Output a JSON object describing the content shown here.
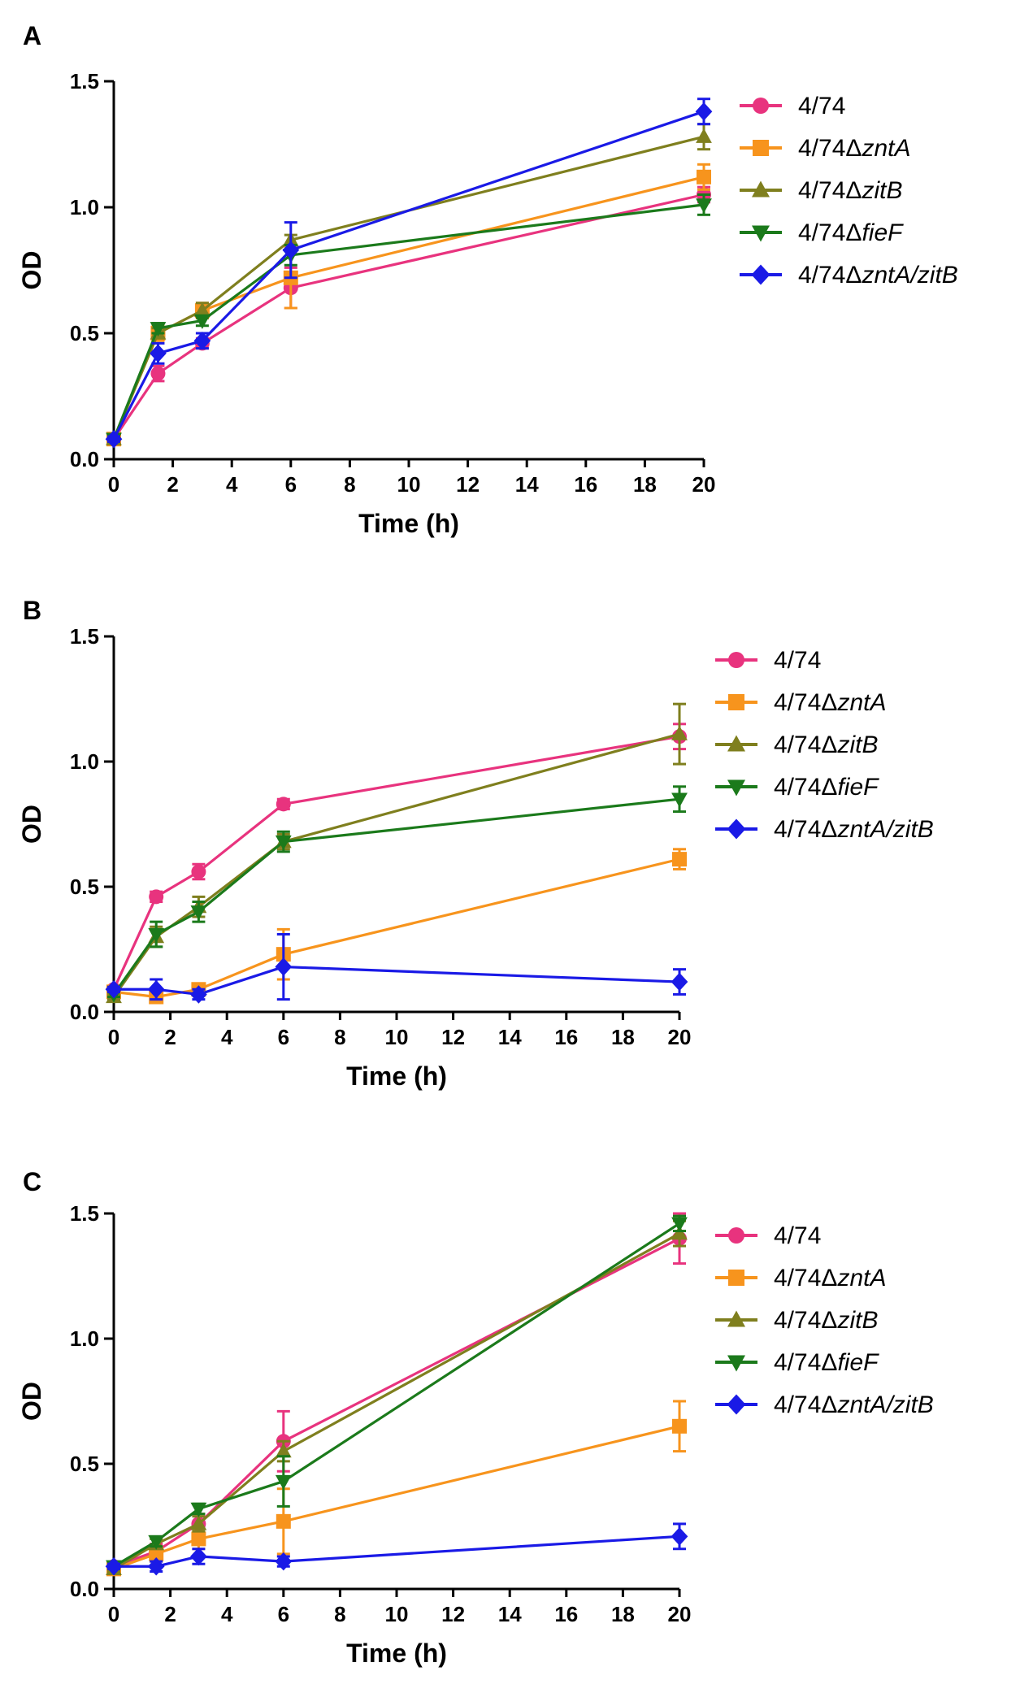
{
  "chart_data": [
    {
      "type": "line",
      "panel_label": "A",
      "title": "",
      "xlabel": "Time (h)",
      "ylabel": "OD",
      "xlim": [
        0,
        20
      ],
      "ylim": [
        0,
        1.5
      ],
      "xticks": [
        "0",
        "2",
        "4",
        "6",
        "8",
        "10",
        "12",
        "14",
        "16",
        "18",
        "20"
      ],
      "yticks": [
        "0.0",
        "0.5",
        "1.0",
        "1.5"
      ],
      "x": [
        0,
        1.5,
        3,
        6,
        20
      ],
      "legend_position": "right",
      "series": [
        {
          "name": "4/74",
          "suffix": "",
          "color": "#E8337E",
          "marker": "circle",
          "values": [
            0.08,
            0.34,
            0.46,
            0.68,
            1.05
          ],
          "errors": [
            0.01,
            0.03,
            0.02,
            0.08,
            0.03
          ]
        },
        {
          "name": "4/74Δ",
          "suffix": "zntA",
          "color": "#F7941D",
          "marker": "square",
          "values": [
            0.08,
            0.5,
            0.59,
            0.72,
            1.12
          ],
          "errors": [
            0.01,
            0.03,
            0.03,
            0.12,
            0.05
          ]
        },
        {
          "name": "4/74Δ",
          "suffix": "zitB",
          "color": "#7F7F1E",
          "marker": "triangle-up",
          "values": [
            0.08,
            0.5,
            0.59,
            0.87,
            1.28
          ],
          "errors": [
            0.01,
            0.02,
            0.03,
            0.02,
            0.05
          ]
        },
        {
          "name": "4/74Δ",
          "suffix": "fieF",
          "color": "#1B7A1B",
          "marker": "triangle-down",
          "values": [
            0.08,
            0.52,
            0.55,
            0.81,
            1.01
          ],
          "errors": [
            0.01,
            0.02,
            0.02,
            0.04,
            0.04
          ]
        },
        {
          "name": "4/74Δ",
          "suffix": "zntA/zitB",
          "color": "#1A1AE6",
          "marker": "diamond",
          "values": [
            0.08,
            0.42,
            0.47,
            0.83,
            1.38
          ],
          "errors": [
            0.01,
            0.04,
            0.03,
            0.11,
            0.05
          ]
        }
      ]
    },
    {
      "type": "line",
      "panel_label": "B",
      "title": "",
      "xlabel": "Time (h)",
      "ylabel": "OD",
      "xlim": [
        0,
        20
      ],
      "ylim": [
        0,
        1.5
      ],
      "xticks": [
        "0",
        "2",
        "4",
        "6",
        "8",
        "10",
        "12",
        "14",
        "16",
        "18",
        "20"
      ],
      "yticks": [
        "0.0",
        "0.5",
        "1.0",
        "1.5"
      ],
      "x": [
        0,
        1.5,
        3,
        6,
        20
      ],
      "legend_position": "right",
      "series": [
        {
          "name": "4/74",
          "suffix": "",
          "color": "#E8337E",
          "marker": "circle",
          "values": [
            0.09,
            0.46,
            0.56,
            0.83,
            1.1
          ],
          "errors": [
            0.01,
            0.02,
            0.03,
            0.02,
            0.05
          ]
        },
        {
          "name": "4/74Δ",
          "suffix": "zntA",
          "color": "#F7941D",
          "marker": "square",
          "values": [
            0.08,
            0.06,
            0.09,
            0.23,
            0.61
          ],
          "errors": [
            0.01,
            0.02,
            0.02,
            0.1,
            0.04
          ]
        },
        {
          "name": "4/74Δ",
          "suffix": "zitB",
          "color": "#7F7F1E",
          "marker": "triangle-up",
          "values": [
            0.06,
            0.3,
            0.42,
            0.68,
            1.11
          ],
          "errors": [
            0.01,
            0.04,
            0.04,
            0.03,
            0.12
          ]
        },
        {
          "name": "4/74Δ",
          "suffix": "fieF",
          "color": "#1B7A1B",
          "marker": "triangle-down",
          "values": [
            0.07,
            0.31,
            0.4,
            0.68,
            0.85
          ],
          "errors": [
            0.01,
            0.05,
            0.04,
            0.04,
            0.05
          ]
        },
        {
          "name": "4/74Δ",
          "suffix": "zntA/zitB",
          "color": "#1A1AE6",
          "marker": "diamond",
          "values": [
            0.09,
            0.09,
            0.07,
            0.18,
            0.12
          ],
          "errors": [
            0.01,
            0.04,
            0.02,
            0.13,
            0.05
          ]
        }
      ]
    },
    {
      "type": "line",
      "panel_label": "C",
      "title": "",
      "xlabel": "Time (h)",
      "ylabel": "OD",
      "xlim": [
        0,
        20
      ],
      "ylim": [
        0,
        1.5
      ],
      "xticks": [
        "0",
        "2",
        "4",
        "6",
        "8",
        "10",
        "12",
        "14",
        "16",
        "18",
        "20"
      ],
      "yticks": [
        "0.0",
        "0.5",
        "1.0",
        "1.5"
      ],
      "x": [
        0,
        1.5,
        3,
        6,
        20
      ],
      "legend_position": "right",
      "series": [
        {
          "name": "4/74",
          "suffix": "",
          "color": "#E8337E",
          "marker": "circle",
          "values": [
            0.09,
            0.15,
            0.26,
            0.59,
            1.4
          ],
          "errors": [
            0.01,
            0.03,
            0.04,
            0.12,
            0.1
          ]
        },
        {
          "name": "4/74Δ",
          "suffix": "zntA",
          "color": "#F7941D",
          "marker": "square",
          "values": [
            0.08,
            0.14,
            0.2,
            0.27,
            0.65
          ],
          "errors": [
            0.01,
            0.03,
            0.04,
            0.13,
            0.1
          ]
        },
        {
          "name": "4/74Δ",
          "suffix": "zitB",
          "color": "#7F7F1E",
          "marker": "triangle-up",
          "values": [
            0.08,
            0.18,
            0.26,
            0.55,
            1.42
          ],
          "errors": [
            0.01,
            0.02,
            0.03,
            0.04,
            0.05
          ]
        },
        {
          "name": "4/74Δ",
          "suffix": "fieF",
          "color": "#1B7A1B",
          "marker": "triangle-down",
          "values": [
            0.09,
            0.19,
            0.32,
            0.43,
            1.46
          ],
          "errors": [
            0.01,
            0.02,
            0.02,
            0.1,
            0.03
          ]
        },
        {
          "name": "4/74Δ",
          "suffix": "zntA/zitB",
          "color": "#1A1AE6",
          "marker": "diamond",
          "values": [
            0.09,
            0.09,
            0.13,
            0.11,
            0.21
          ],
          "errors": [
            0.01,
            0.02,
            0.03,
            0.02,
            0.05
          ]
        }
      ]
    }
  ]
}
